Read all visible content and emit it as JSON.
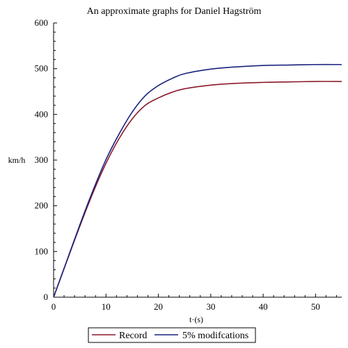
{
  "chart_data": {
    "type": "line",
    "title": "An approximate graphs for Daniel Hagström",
    "xlabel": "t·(s)",
    "ylabel": "km/h",
    "xlim": [
      0,
      55
    ],
    "ylim": [
      0,
      600
    ],
    "xticks": [
      0,
      10,
      20,
      30,
      40,
      50
    ],
    "yticks": [
      0,
      100,
      200,
      300,
      400,
      500,
      600
    ],
    "legend_position": "bottom",
    "grid": false,
    "series": [
      {
        "name": "Record",
        "color": "#8b1a2b",
        "points": [
          [
            0,
            0
          ],
          [
            2.5,
            78
          ],
          [
            5,
            155
          ],
          [
            7.5,
            228
          ],
          [
            10,
            293
          ],
          [
            12.5,
            347
          ],
          [
            15,
            390
          ],
          [
            17.5,
            420
          ],
          [
            20,
            436
          ],
          [
            22.5,
            448
          ],
          [
            25,
            456
          ],
          [
            30,
            464
          ],
          [
            35,
            468
          ],
          [
            40,
            470
          ],
          [
            45,
            471
          ],
          [
            50,
            472
          ],
          [
            55,
            472
          ]
        ]
      },
      {
        "name": "5% modifcations",
        "color": "#1a237e",
        "points": [
          [
            0,
            0
          ],
          [
            2.5,
            79
          ],
          [
            5,
            158
          ],
          [
            7.5,
            233
          ],
          [
            10,
            301
          ],
          [
            12.5,
            357
          ],
          [
            15,
            405
          ],
          [
            17.5,
            441
          ],
          [
            20,
            463
          ],
          [
            22.5,
            478
          ],
          [
            25,
            489
          ],
          [
            30,
            499
          ],
          [
            35,
            504
          ],
          [
            40,
            507
          ],
          [
            45,
            508
          ],
          [
            50,
            509
          ],
          [
            55,
            509
          ]
        ]
      }
    ]
  }
}
